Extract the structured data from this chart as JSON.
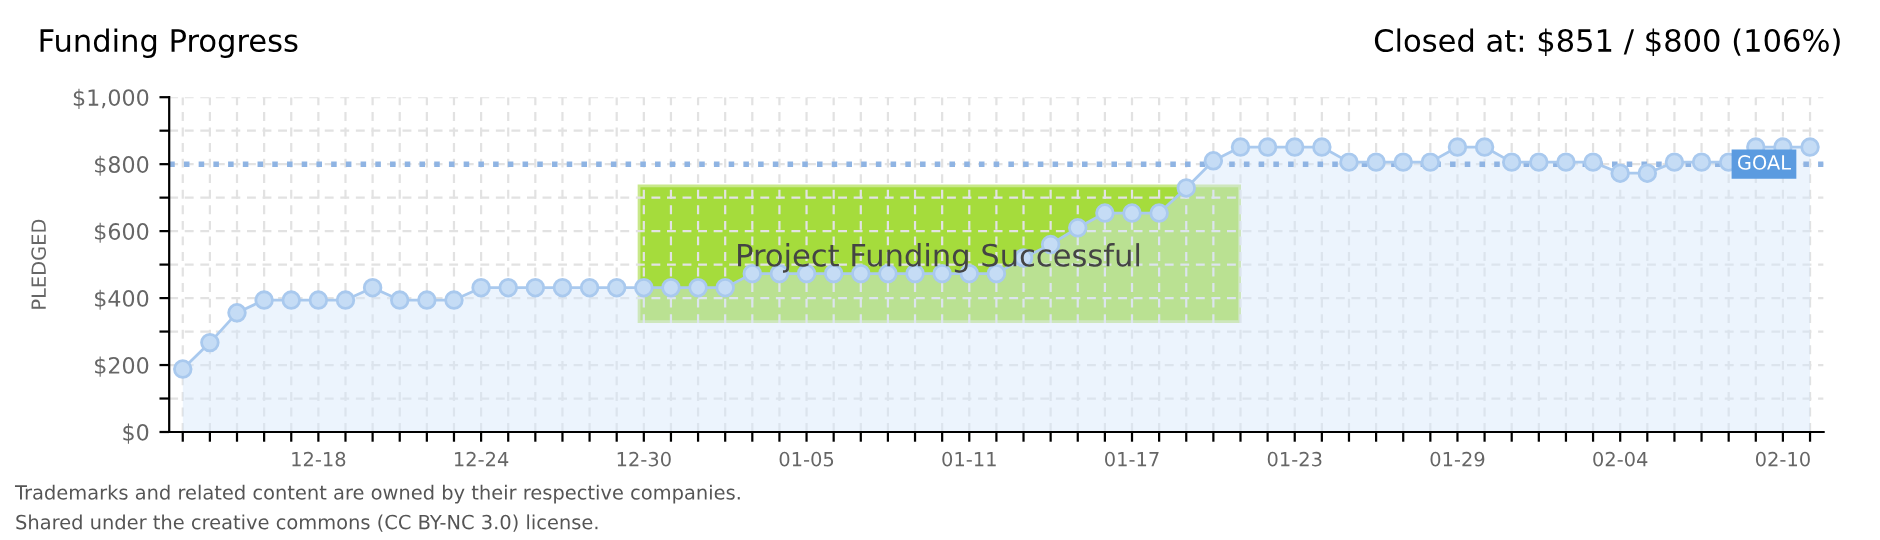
{
  "chart_data": {
    "type": "area",
    "title": "Funding Progress",
    "ylabel": "PLEDGED",
    "categories": [
      null,
      null,
      null,
      null,
      null,
      "12-18",
      null,
      null,
      null,
      null,
      null,
      "12-24",
      null,
      null,
      null,
      null,
      null,
      "12-30",
      null,
      null,
      null,
      null,
      null,
      "01-05",
      null,
      null,
      null,
      null,
      null,
      "01-11",
      null,
      null,
      null,
      null,
      null,
      "01-17",
      null,
      null,
      null,
      null,
      null,
      "01-23",
      null,
      null,
      null,
      null,
      null,
      "01-29",
      null,
      null,
      null,
      null,
      null,
      "02-04",
      null,
      null,
      null,
      null,
      null,
      "02-10",
      null
    ],
    "series": [
      {
        "color": "#a9c9ee",
        "values": [
          188,
          267,
          356,
          394,
          394,
          394,
          394,
          431,
          394,
          394,
          394,
          431,
          431,
          431,
          431,
          431,
          431,
          431,
          431,
          431,
          431,
          473,
          473,
          473,
          473,
          473,
          473,
          473,
          473,
          473,
          473,
          520,
          560,
          610,
          654,
          654,
          654,
          729,
          810,
          851,
          851,
          851,
          851,
          806,
          806,
          806,
          806,
          851,
          851,
          806,
          806,
          806,
          806,
          773,
          773,
          806,
          806,
          806,
          851,
          851,
          851
        ]
      }
    ],
    "ylim": [
      0,
      1000
    ],
    "yticks": [
      {
        "value": 0,
        "label": "$0"
      },
      {
        "value": 100,
        "label": null
      },
      {
        "value": 200,
        "label": "$200"
      },
      {
        "value": 300,
        "label": null
      },
      {
        "value": 400,
        "label": "$400"
      },
      {
        "value": 500,
        "label": null
      },
      {
        "value": 600,
        "label": "$600"
      },
      {
        "value": 700,
        "label": null
      },
      {
        "value": 800,
        "label": "$800"
      },
      {
        "value": 900,
        "label": null
      },
      {
        "value": 1000,
        "label": "$1,000"
      }
    ],
    "ref_lines": [
      {
        "axis": "y",
        "value": 800,
        "label": "GOAL",
        "color": "#8fb4e3",
        "line_style": "dotted"
      }
    ],
    "grid": true,
    "marker": "circle",
    "line_style": "solid",
    "annotations": [
      "Closed at: $851 / $800 (106%)",
      "Project Funding Successful",
      "Trademarks and related content are owned by their respective companies.",
      "Shared under the creative commons (CC BY-NC 3.0) license."
    ]
  }
}
